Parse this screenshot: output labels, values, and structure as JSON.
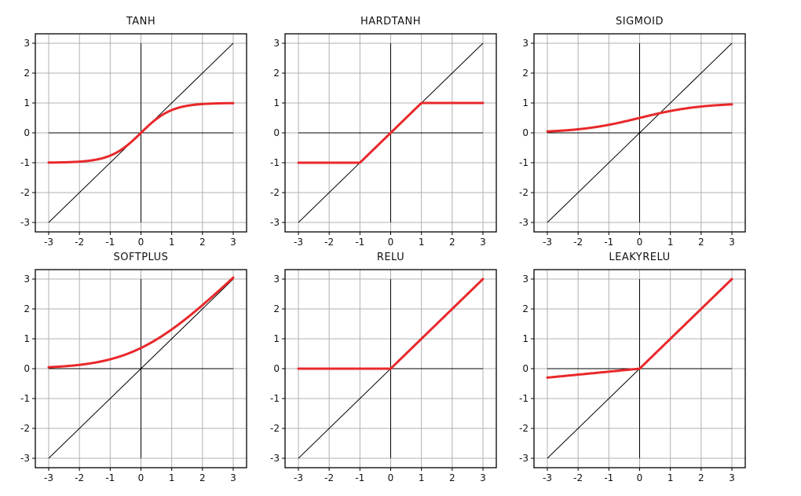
{
  "chart_data": [
    {
      "type": "line",
      "title": "TANH",
      "function": "tanh",
      "xlim": [
        -3,
        3
      ],
      "ylim": [
        -3,
        3
      ],
      "grid": true,
      "ticks": [
        -3,
        -2,
        -1,
        0,
        1,
        2,
        3
      ],
      "tick_labels": [
        "-3",
        "-2",
        "-1",
        "0",
        "1",
        "2",
        "3"
      ],
      "x": [
        -3,
        -2,
        -1,
        -0.5,
        0,
        0.5,
        1,
        2,
        3
      ],
      "y": [
        -0.995,
        -0.964,
        -0.762,
        -0.462,
        0,
        0.462,
        0.762,
        0.964,
        0.995
      ],
      "reference_line": "y = x"
    },
    {
      "type": "line",
      "title": "HARDTANH",
      "function": "hardtanh",
      "xlim": [
        -3,
        3
      ],
      "ylim": [
        -3,
        3
      ],
      "grid": true,
      "ticks": [
        -3,
        -2,
        -1,
        0,
        1,
        2,
        3
      ],
      "tick_labels": [
        "-3",
        "-2",
        "-1",
        "0",
        "1",
        "2",
        "3"
      ],
      "x": [
        -3,
        -1,
        1,
        3
      ],
      "y": [
        -1,
        -1,
        1,
        1
      ],
      "reference_line": "y = x"
    },
    {
      "type": "line",
      "title": "SIGMOID",
      "function": "sigmoid",
      "xlim": [
        -3,
        3
      ],
      "ylim": [
        -3,
        3
      ],
      "grid": true,
      "ticks": [
        -3,
        -2,
        -1,
        0,
        1,
        2,
        3
      ],
      "tick_labels": [
        "-3",
        "-2",
        "-1",
        "0",
        "1",
        "2",
        "3"
      ],
      "x": [
        -3,
        -2,
        -1,
        0,
        1,
        2,
        3
      ],
      "y": [
        0.047,
        0.119,
        0.269,
        0.5,
        0.731,
        0.881,
        0.953
      ],
      "reference_line": "y = x"
    },
    {
      "type": "line",
      "title": "SOFTPLUS",
      "function": "softplus",
      "xlim": [
        -3,
        3
      ],
      "ylim": [
        -3,
        3
      ],
      "grid": true,
      "ticks": [
        -3,
        -2,
        -1,
        0,
        1,
        2,
        3
      ],
      "tick_labels": [
        "-3",
        "-2",
        "-1",
        "0",
        "1",
        "2",
        "3"
      ],
      "x": [
        -3,
        -2,
        -1,
        0,
        1,
        2,
        3
      ],
      "y": [
        0.049,
        0.127,
        0.313,
        0.693,
        1.313,
        2.127,
        3.049
      ],
      "reference_line": "y = x"
    },
    {
      "type": "line",
      "title": "RELU",
      "function": "relu",
      "xlim": [
        -3,
        3
      ],
      "ylim": [
        -3,
        3
      ],
      "grid": true,
      "ticks": [
        -3,
        -2,
        -1,
        0,
        1,
        2,
        3
      ],
      "tick_labels": [
        "-3",
        "-2",
        "-1",
        "0",
        "1",
        "2",
        "3"
      ],
      "x": [
        -3,
        0,
        3
      ],
      "y": [
        0,
        0,
        3
      ],
      "reference_line": "y = x"
    },
    {
      "type": "line",
      "title": "LEAKYRELU",
      "function": "leakyrelu",
      "xlim": [
        -3,
        3
      ],
      "ylim": [
        -3,
        3
      ],
      "grid": true,
      "ticks": [
        -3,
        -2,
        -1,
        0,
        1,
        2,
        3
      ],
      "tick_labels": [
        "-3",
        "-2",
        "-1",
        "0",
        "1",
        "2",
        "3"
      ],
      "x": [
        -3,
        0,
        3
      ],
      "y": [
        -0.3,
        0,
        3
      ],
      "reference_line": "y = x"
    }
  ],
  "colors": {
    "curve": "#e8282b",
    "reference": "#000000",
    "axes": "#000000",
    "grid": "#b0b0b0"
  }
}
